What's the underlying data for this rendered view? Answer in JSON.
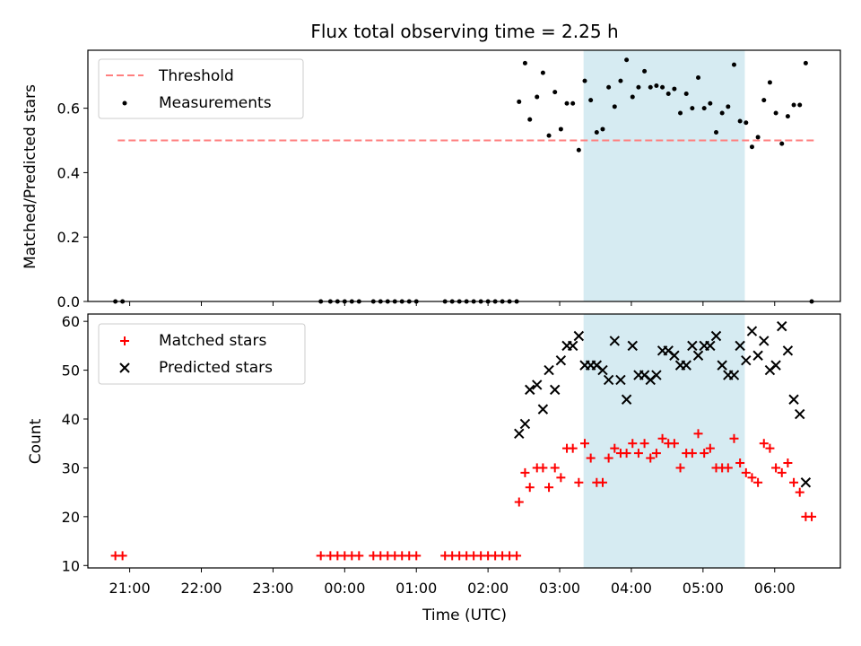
{
  "chart_data": {
    "type": "scatter",
    "title": "Flux total observing time = 2.25 h",
    "xlabel": "Time (UTC)",
    "x_unit": "hours UTC",
    "x_ticks": [
      "21:00",
      "22:00",
      "23:00",
      "00:00",
      "01:00",
      "02:00",
      "03:00",
      "04:00",
      "05:00",
      "06:00"
    ],
    "x_tick_values": [
      "21:00",
      "22:00",
      "23:00",
      "24:00",
      "25:00",
      "26:00",
      "27:00",
      "28:00",
      "29:00",
      "30:00"
    ],
    "xlim": [
      "20:25",
      "30:55"
    ],
    "shaded_interval": [
      "27:20",
      "29:35"
    ],
    "shaded_color": "#add8e6",
    "top": {
      "ylabel": "Matched/Predicted stars",
      "ylim": [
        0,
        0.78
      ],
      "y_ticks": [
        "0.0",
        "0.2",
        "0.4",
        "0.6"
      ],
      "legend_position": "upper left",
      "threshold": {
        "name": "Threshold",
        "value": 0.5,
        "x_range": [
          "20:50",
          "30:35"
        ],
        "color": "#ff7f7f"
      },
      "measurements": {
        "name": "Measurements",
        "color": "#000000",
        "points": [
          [
            "20:48",
            0
          ],
          [
            "20:54",
            0
          ],
          [
            "23:40",
            0
          ],
          [
            "23:48",
            0
          ],
          [
            "23:54",
            0
          ],
          [
            "24:00",
            0
          ],
          [
            "24:06",
            0
          ],
          [
            "24:12",
            0
          ],
          [
            "24:24",
            0
          ],
          [
            "24:30",
            0
          ],
          [
            "24:36",
            0
          ],
          [
            "24:42",
            0
          ],
          [
            "24:48",
            0
          ],
          [
            "24:54",
            0
          ],
          [
            "25:00",
            0
          ],
          [
            "25:24",
            0
          ],
          [
            "25:30",
            0
          ],
          [
            "25:36",
            0
          ],
          [
            "25:42",
            0
          ],
          [
            "25:48",
            0
          ],
          [
            "25:54",
            0
          ],
          [
            "26:00",
            0
          ],
          [
            "26:06",
            0
          ],
          [
            "26:12",
            0
          ],
          [
            "26:18",
            0
          ],
          [
            "26:24",
            0
          ],
          [
            "26:26",
            0.62
          ],
          [
            "26:31",
            0.74
          ],
          [
            "26:35",
            0.565
          ],
          [
            "26:41",
            0.635
          ],
          [
            "26:46",
            0.71
          ],
          [
            "26:51",
            0.515
          ],
          [
            "26:56",
            0.65
          ],
          [
            "27:01",
            0.535
          ],
          [
            "27:06",
            0.615
          ],
          [
            "27:11",
            0.615
          ],
          [
            "27:16",
            0.47
          ],
          [
            "27:21",
            0.685
          ],
          [
            "27:26",
            0.625
          ],
          [
            "27:31",
            0.525
          ],
          [
            "27:36",
            0.535
          ],
          [
            "27:41",
            0.665
          ],
          [
            "27:46",
            0.605
          ],
          [
            "27:51",
            0.685
          ],
          [
            "27:56",
            0.75
          ],
          [
            "28:01",
            0.635
          ],
          [
            "28:06",
            0.665
          ],
          [
            "28:11",
            0.715
          ],
          [
            "28:16",
            0.665
          ],
          [
            "28:21",
            0.67
          ],
          [
            "28:26",
            0.665
          ],
          [
            "28:31",
            0.645
          ],
          [
            "28:36",
            0.66
          ],
          [
            "28:41",
            0.585
          ],
          [
            "28:46",
            0.645
          ],
          [
            "28:51",
            0.6
          ],
          [
            "28:56",
            0.695
          ],
          [
            "29:01",
            0.6
          ],
          [
            "29:06",
            0.615
          ],
          [
            "29:11",
            0.525
          ],
          [
            "29:16",
            0.585
          ],
          [
            "29:21",
            0.605
          ],
          [
            "29:26",
            0.735
          ],
          [
            "29:31",
            0.56
          ],
          [
            "29:36",
            0.555
          ],
          [
            "29:41",
            0.48
          ],
          [
            "29:46",
            0.51
          ],
          [
            "29:51",
            0.625
          ],
          [
            "29:56",
            0.68
          ],
          [
            "30:01",
            0.585
          ],
          [
            "30:06",
            0.49
          ],
          [
            "30:11",
            0.575
          ],
          [
            "30:16",
            0.61
          ],
          [
            "30:21",
            0.61
          ],
          [
            "30:26",
            0.74
          ],
          [
            "30:31",
            0
          ]
        ]
      }
    },
    "bottom": {
      "ylabel": "Count",
      "ylim": [
        9.5,
        61.5
      ],
      "y_ticks": [
        "10",
        "20",
        "30",
        "40",
        "50",
        "60"
      ],
      "legend_position": "upper left",
      "series": [
        {
          "name": "Matched stars",
          "marker": "+",
          "color": "#ff0000",
          "points": [
            [
              "20:48",
              12
            ],
            [
              "20:54",
              12
            ],
            [
              "23:40",
              12
            ],
            [
              "23:48",
              12
            ],
            [
              "23:54",
              12
            ],
            [
              "24:00",
              12
            ],
            [
              "24:06",
              12
            ],
            [
              "24:12",
              12
            ],
            [
              "24:24",
              12
            ],
            [
              "24:30",
              12
            ],
            [
              "24:36",
              12
            ],
            [
              "24:42",
              12
            ],
            [
              "24:48",
              12
            ],
            [
              "24:54",
              12
            ],
            [
              "25:00",
              12
            ],
            [
              "25:24",
              12
            ],
            [
              "25:30",
              12
            ],
            [
              "25:36",
              12
            ],
            [
              "25:42",
              12
            ],
            [
              "25:48",
              12
            ],
            [
              "25:54",
              12
            ],
            [
              "26:00",
              12
            ],
            [
              "26:06",
              12
            ],
            [
              "26:12",
              12
            ],
            [
              "26:18",
              12
            ],
            [
              "26:24",
              12
            ],
            [
              "26:26",
              23
            ],
            [
              "26:31",
              29
            ],
            [
              "26:35",
              26
            ],
            [
              "26:41",
              30
            ],
            [
              "26:46",
              30
            ],
            [
              "26:51",
              26
            ],
            [
              "26:56",
              30
            ],
            [
              "27:01",
              28
            ],
            [
              "27:06",
              34
            ],
            [
              "27:11",
              34
            ],
            [
              "27:16",
              27
            ],
            [
              "27:21",
              35
            ],
            [
              "27:26",
              32
            ],
            [
              "27:31",
              27
            ],
            [
              "27:36",
              27
            ],
            [
              "27:41",
              32
            ],
            [
              "27:46",
              34
            ],
            [
              "27:51",
              33
            ],
            [
              "27:56",
              33
            ],
            [
              "28:01",
              35
            ],
            [
              "28:06",
              33
            ],
            [
              "28:11",
              35
            ],
            [
              "28:16",
              32
            ],
            [
              "28:21",
              33
            ],
            [
              "28:26",
              36
            ],
            [
              "28:31",
              35
            ],
            [
              "28:36",
              35
            ],
            [
              "28:41",
              30
            ],
            [
              "28:46",
              33
            ],
            [
              "28:51",
              33
            ],
            [
              "28:56",
              37
            ],
            [
              "29:01",
              33
            ],
            [
              "29:06",
              34
            ],
            [
              "29:11",
              30
            ],
            [
              "29:16",
              30
            ],
            [
              "29:21",
              30
            ],
            [
              "29:26",
              36
            ],
            [
              "29:31",
              31
            ],
            [
              "29:36",
              29
            ],
            [
              "29:41",
              28
            ],
            [
              "29:46",
              27
            ],
            [
              "29:51",
              35
            ],
            [
              "29:56",
              34
            ],
            [
              "30:01",
              30
            ],
            [
              "30:06",
              29
            ],
            [
              "30:11",
              31
            ],
            [
              "30:16",
              27
            ],
            [
              "30:21",
              25
            ],
            [
              "30:26",
              20
            ],
            [
              "30:31",
              20
            ]
          ]
        },
        {
          "name": "Predicted stars",
          "marker": "x",
          "color": "#000000",
          "points": [
            [
              "26:26",
              37
            ],
            [
              "26:31",
              39
            ],
            [
              "26:35",
              46
            ],
            [
              "26:41",
              47
            ],
            [
              "26:46",
              42
            ],
            [
              "26:51",
              50
            ],
            [
              "26:56",
              46
            ],
            [
              "27:01",
              52
            ],
            [
              "27:06",
              55
            ],
            [
              "27:11",
              55
            ],
            [
              "27:16",
              57
            ],
            [
              "27:21",
              51
            ],
            [
              "27:26",
              51
            ],
            [
              "27:31",
              51
            ],
            [
              "27:36",
              50
            ],
            [
              "27:41",
              48
            ],
            [
              "27:46",
              56
            ],
            [
              "27:51",
              48
            ],
            [
              "27:56",
              44
            ],
            [
              "28:01",
              55
            ],
            [
              "28:06",
              49
            ],
            [
              "28:11",
              49
            ],
            [
              "28:16",
              48
            ],
            [
              "28:21",
              49
            ],
            [
              "28:26",
              54
            ],
            [
              "28:31",
              54
            ],
            [
              "28:36",
              53
            ],
            [
              "28:41",
              51
            ],
            [
              "28:46",
              51
            ],
            [
              "28:51",
              55
            ],
            [
              "28:56",
              53
            ],
            [
              "29:01",
              55
            ],
            [
              "29:06",
              55
            ],
            [
              "29:11",
              57
            ],
            [
              "29:16",
              51
            ],
            [
              "29:21",
              49
            ],
            [
              "29:26",
              49
            ],
            [
              "29:31",
              55
            ],
            [
              "29:36",
              52
            ],
            [
              "29:41",
              58
            ],
            [
              "29:46",
              53
            ],
            [
              "29:51",
              56
            ],
            [
              "29:56",
              50
            ],
            [
              "30:01",
              51
            ],
            [
              "30:06",
              59
            ],
            [
              "30:11",
              54
            ],
            [
              "30:16",
              44
            ],
            [
              "30:21",
              41
            ],
            [
              "30:26",
              27
            ]
          ]
        }
      ]
    }
  }
}
